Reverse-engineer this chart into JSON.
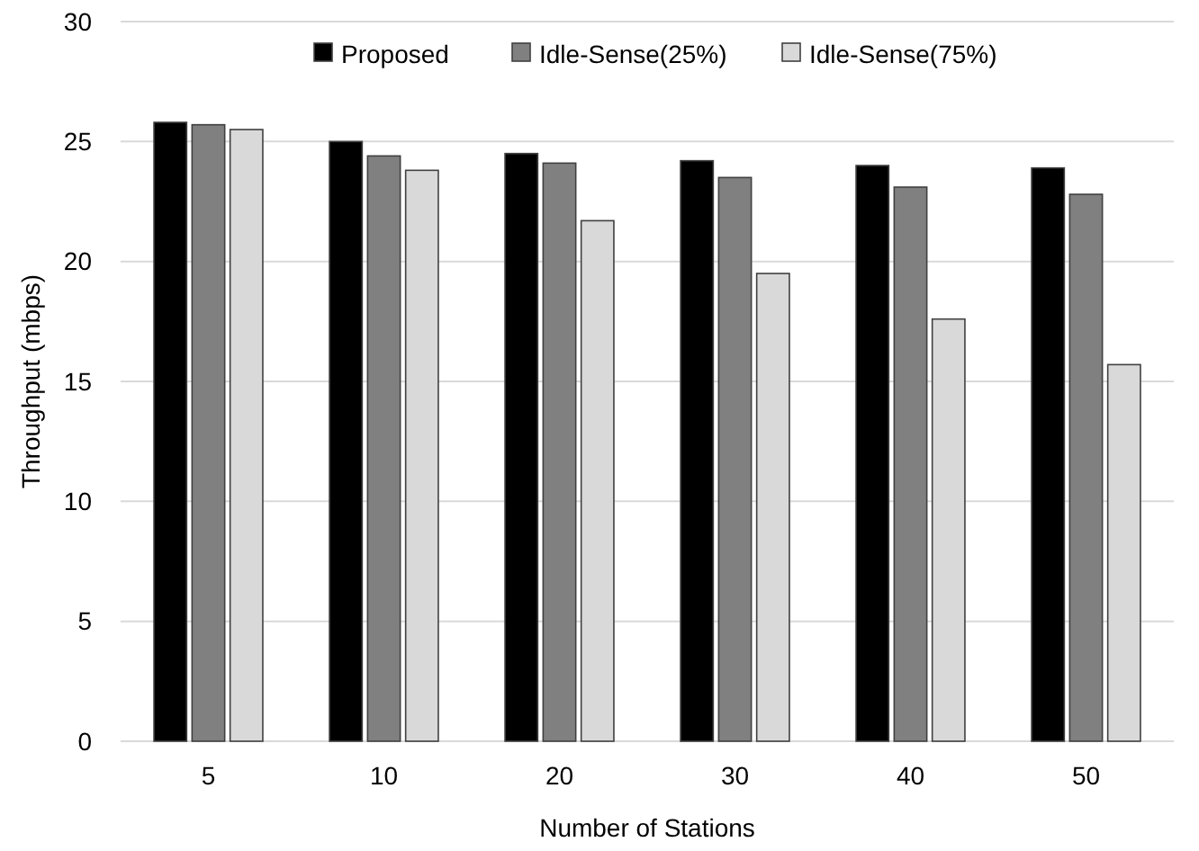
{
  "chart_data": {
    "type": "bar",
    "xlabel": "Number of Stations",
    "ylabel": "Throughput (mbps)",
    "categories": [
      "5",
      "10",
      "20",
      "30",
      "40",
      "50"
    ],
    "series": [
      {
        "name": "Proposed",
        "color": "#000000",
        "values": [
          25.8,
          25.0,
          24.5,
          24.2,
          24.0,
          23.9
        ]
      },
      {
        "name": "Idle-Sense(25%)",
        "color": "#808080",
        "values": [
          25.7,
          24.4,
          24.1,
          23.5,
          23.1,
          22.8
        ]
      },
      {
        "name": "Idle-Sense(75%)",
        "color": "#d9d9d9",
        "values": [
          25.5,
          23.8,
          21.7,
          19.5,
          17.6,
          15.7
        ]
      }
    ],
    "ylim": [
      0,
      30
    ],
    "yticks": [
      0,
      5,
      10,
      15,
      20,
      25,
      30
    ],
    "grid": "y",
    "legend": "top"
  }
}
